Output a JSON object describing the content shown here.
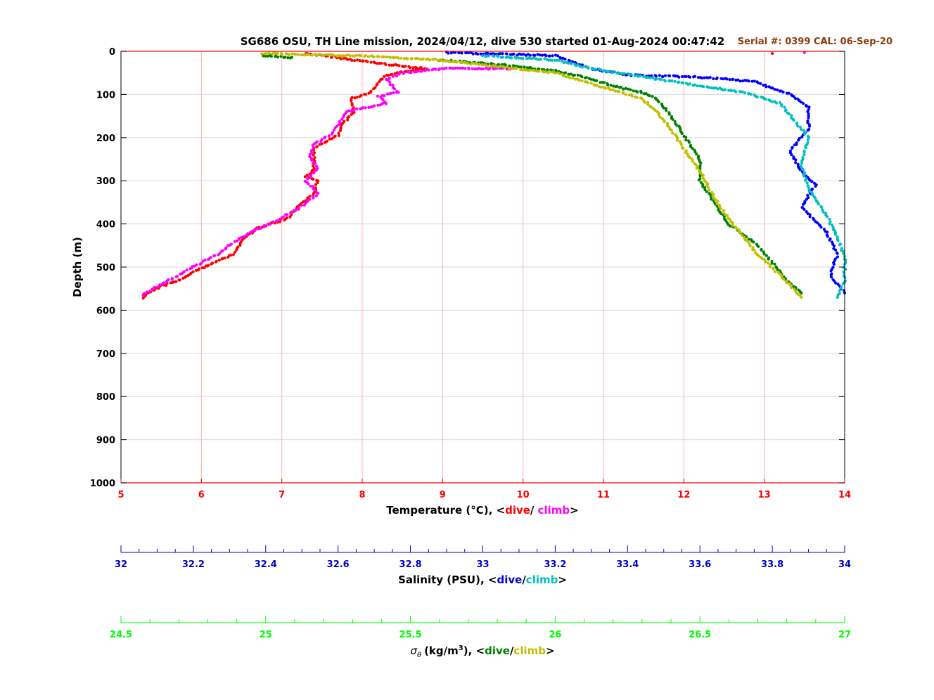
{
  "title": "SG686 OSU, TH Line mission, 2024/04/12, dive 530 started 01-Aug-2024 00:47:42",
  "serial_text": "Serial #: 0399  CAL: 06-Sep-20",
  "colors": {
    "temp_axis": "#ff0000",
    "sal_axis": "#0000cc",
    "sig_axis": "#00ff00",
    "temp_dive": "#ff0000",
    "temp_climb": "#ff00ff",
    "sal_dive": "#0000ff",
    "sal_climb": "#00bfbf",
    "sig_dive": "#008000",
    "sig_climb": "#bfbf00",
    "serial": "#8b3a0e",
    "frame_red": "#ff0000",
    "grid_red": "#ffb0b0",
    "grid_gray": "#d9d9d9"
  },
  "chart_data": {
    "type": "scatter",
    "y_axis": {
      "label": "Depth (m)",
      "range": [
        0,
        1000
      ],
      "reversed": true,
      "ticks": [
        "0",
        "100",
        "200",
        "300",
        "400",
        "500",
        "600",
        "700",
        "800",
        "900",
        "1000"
      ]
    },
    "temperature_axis": {
      "label_prefix": "Temperature (°C), <",
      "label_dive": "dive",
      "label_sep": "/ ",
      "label_climb": "climb",
      "label_suffix": ">",
      "range": [
        5,
        14
      ],
      "ticks": [
        "5",
        "6",
        "7",
        "8",
        "9",
        "10",
        "11",
        "12",
        "13",
        "14"
      ]
    },
    "salinity_axis": {
      "label_prefix": "Salinity (PSU), <",
      "label_dive": "dive",
      "label_sep": "/",
      "label_climb": "climb",
      "label_suffix": ">",
      "range": [
        32,
        34
      ],
      "ticks": [
        "32",
        "32.2",
        "32.4",
        "32.6",
        "32.8",
        "33",
        "33.2",
        "33.4",
        "33.6",
        "33.8",
        "34"
      ]
    },
    "density_axis": {
      "label_prefix": "(kg/m",
      "label_sup": "3",
      "label_mid": "), <",
      "label_dive": "dive",
      "label_sep": "/",
      "label_climb": "climb",
      "label_suffix": ">",
      "sigma_symbol": "σ",
      "sigma_sub": "θ",
      "range": [
        24.5,
        27
      ],
      "ticks": [
        "24.5",
        "25",
        "25.5",
        "26",
        "26.5",
        "27"
      ]
    },
    "series": [
      {
        "name": "dive",
        "variable": "temperature",
        "points": [
          [
            7.3,
            5
          ],
          [
            8.3,
            30
          ],
          [
            8.8,
            40
          ],
          [
            8.3,
            55
          ],
          [
            8.1,
            95
          ],
          [
            7.85,
            110
          ],
          [
            7.9,
            140
          ],
          [
            7.75,
            170
          ],
          [
            7.7,
            195
          ],
          [
            7.4,
            225
          ],
          [
            7.4,
            275
          ],
          [
            7.3,
            290
          ],
          [
            7.45,
            300
          ],
          [
            7.4,
            330
          ],
          [
            7.2,
            360
          ],
          [
            7.1,
            385
          ],
          [
            6.7,
            410
          ],
          [
            6.5,
            440
          ],
          [
            6.4,
            470
          ],
          [
            6.1,
            495
          ],
          [
            5.9,
            510
          ],
          [
            5.8,
            525
          ],
          [
            5.5,
            545
          ],
          [
            5.3,
            565
          ],
          [
            5.25,
            575
          ],
          [
            13.1,
            5
          ]
        ]
      },
      {
        "name": "climb",
        "variable": "temperature",
        "points": [
          [
            9.9,
            40
          ],
          [
            9.0,
            40
          ],
          [
            8.5,
            50
          ],
          [
            8.3,
            65
          ],
          [
            8.45,
            95
          ],
          [
            8.2,
            105
          ],
          [
            8.3,
            120
          ],
          [
            7.8,
            140
          ],
          [
            7.7,
            170
          ],
          [
            7.6,
            195
          ],
          [
            7.4,
            215
          ],
          [
            7.35,
            245
          ],
          [
            7.45,
            270
          ],
          [
            7.3,
            300
          ],
          [
            7.45,
            330
          ],
          [
            7.2,
            365
          ],
          [
            6.9,
            395
          ],
          [
            6.5,
            430
          ],
          [
            6.2,
            470
          ],
          [
            5.9,
            500
          ],
          [
            5.6,
            530
          ],
          [
            5.3,
            560
          ],
          [
            5.25,
            570
          ],
          [
            10.8,
            15
          ],
          [
            13.5,
            3
          ]
        ]
      },
      {
        "name": "dive",
        "variable": "salinity",
        "points": [
          [
            32.9,
            3
          ],
          [
            33.2,
            10
          ],
          [
            33.3,
            40
          ],
          [
            33.4,
            55
          ],
          [
            33.6,
            60
          ],
          [
            33.75,
            70
          ],
          [
            33.85,
            100
          ],
          [
            33.9,
            130
          ],
          [
            33.9,
            180
          ],
          [
            33.85,
            230
          ],
          [
            33.88,
            280
          ],
          [
            33.92,
            310
          ],
          [
            33.88,
            360
          ],
          [
            33.95,
            420
          ],
          [
            33.98,
            470
          ],
          [
            33.96,
            520
          ],
          [
            34.0,
            560
          ]
        ]
      },
      {
        "name": "climb",
        "variable": "salinity",
        "points": [
          [
            33.0,
            10
          ],
          [
            33.2,
            20
          ],
          [
            33.3,
            40
          ],
          [
            33.45,
            60
          ],
          [
            33.6,
            80
          ],
          [
            33.72,
            95
          ],
          [
            33.82,
            120
          ],
          [
            33.85,
            150
          ],
          [
            33.9,
            200
          ],
          [
            33.88,
            260
          ],
          [
            33.9,
            320
          ],
          [
            33.95,
            380
          ],
          [
            33.98,
            430
          ],
          [
            34.0,
            480
          ],
          [
            34.0,
            530
          ],
          [
            33.98,
            570
          ]
        ]
      },
      {
        "name": "dive",
        "variable": "sigma_theta",
        "points": [
          [
            24.99,
            10
          ],
          [
            25.1,
            15
          ],
          [
            25.6,
            20
          ],
          [
            25.8,
            30
          ],
          [
            26.0,
            45
          ],
          [
            26.1,
            60
          ],
          [
            26.2,
            80
          ],
          [
            26.3,
            95
          ],
          [
            26.35,
            110
          ],
          [
            26.4,
            150
          ],
          [
            26.45,
            200
          ],
          [
            26.5,
            250
          ],
          [
            26.5,
            300
          ],
          [
            26.55,
            350
          ],
          [
            26.6,
            400
          ],
          [
            26.7,
            450
          ],
          [
            26.75,
            490
          ],
          [
            26.8,
            530
          ],
          [
            26.85,
            560
          ]
        ]
      },
      {
        "name": "climb",
        "variable": "sigma_theta",
        "points": [
          [
            24.99,
            5
          ],
          [
            25.3,
            10
          ],
          [
            25.6,
            20
          ],
          [
            25.8,
            35
          ],
          [
            26.0,
            50
          ],
          [
            26.1,
            70
          ],
          [
            26.2,
            90
          ],
          [
            26.3,
            110
          ],
          [
            26.35,
            140
          ],
          [
            26.4,
            180
          ],
          [
            26.45,
            230
          ],
          [
            26.5,
            280
          ],
          [
            26.55,
            340
          ],
          [
            26.6,
            390
          ],
          [
            26.65,
            430
          ],
          [
            26.7,
            470
          ],
          [
            26.78,
            520
          ],
          [
            26.85,
            570
          ]
        ]
      }
    ]
  }
}
